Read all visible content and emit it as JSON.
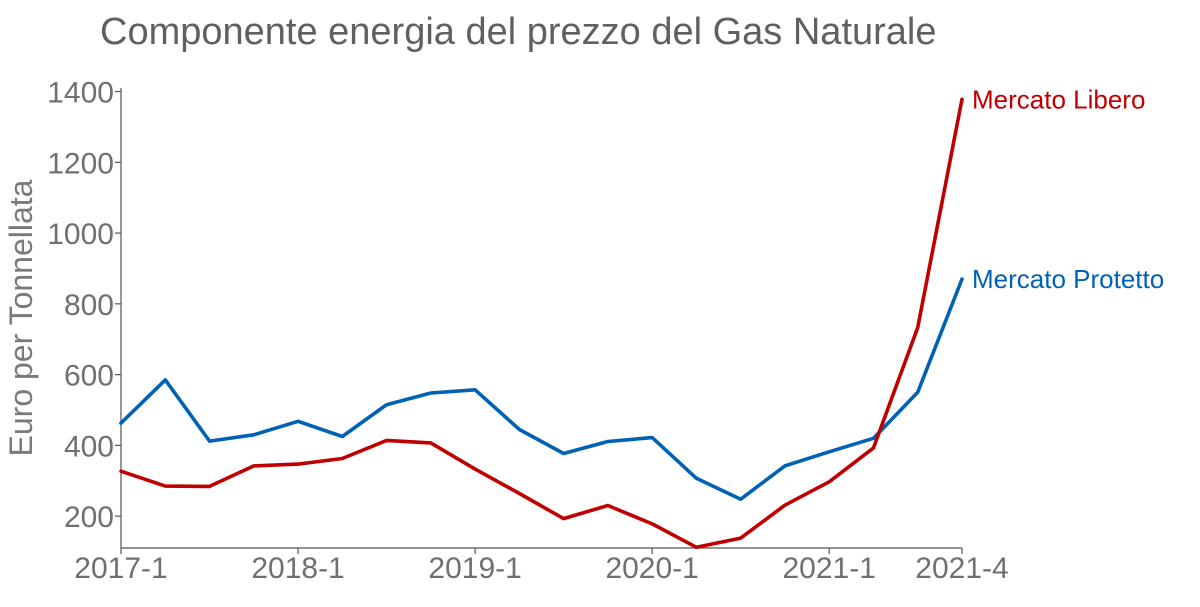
{
  "chart_data": {
    "type": "line",
    "title": "Componente energia del prezzo del Gas Naturale",
    "xlabel": "",
    "ylabel": "Euro per Tonnellata",
    "x": [
      "2017-1",
      "2017-2",
      "2017-3",
      "2017-4",
      "2018-1",
      "2018-2",
      "2018-3",
      "2018-4",
      "2019-1",
      "2019-2",
      "2019-3",
      "2019-4",
      "2020-1",
      "2020-2",
      "2020-3",
      "2020-4",
      "2021-1",
      "2021-2",
      "2021-3",
      "2021-4"
    ],
    "x_ticks": [
      "2017-1",
      "2018-1",
      "2019-1",
      "2020-1",
      "2021-1",
      "2021-4"
    ],
    "y_ticks": [
      200,
      400,
      600,
      800,
      1000,
      1200,
      1400
    ],
    "ylim": [
      110,
      1410
    ],
    "grid": false,
    "legend": "inline labels at line ends",
    "series": [
      {
        "name": "Mercato Libero",
        "color": "#C00000",
        "values": [
          327,
          285,
          284,
          342,
          347,
          363,
          414,
          407,
          333,
          264,
          193,
          230,
          178,
          112,
          138,
          231,
          297,
          393,
          733,
          1378
        ]
      },
      {
        "name": "Mercato Protetto",
        "color": "#0062B4",
        "values": [
          463,
          585,
          412,
          430,
          468,
          425,
          515,
          548,
          557,
          445,
          377,
          411,
          422,
          307,
          248,
          342,
          382,
          420,
          550,
          870
        ]
      }
    ]
  }
}
